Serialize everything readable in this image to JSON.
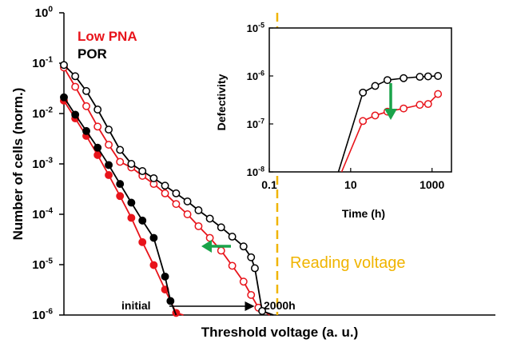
{
  "chart_data": [
    {
      "id": "main",
      "type": "line",
      "xlabel": "Threshold voltage (a. u.)",
      "ylabel": "Number of cells (norm.)",
      "x_tick_labels": [],
      "y_scale": "log",
      "ylim": [
        1e-06,
        1
      ],
      "y_ticks": [
        {
          "v": 1,
          "base": "10",
          "exp": "0"
        },
        {
          "v": 0.1,
          "base": "10",
          "exp": "-1"
        },
        {
          "v": 0.01,
          "base": "10",
          "exp": "-2"
        },
        {
          "v": 0.001,
          "base": "10",
          "exp": "-3"
        },
        {
          "v": 0.0001,
          "base": "10",
          "exp": "-4"
        },
        {
          "v": 1e-05,
          "base": "10",
          "exp": "-5"
        },
        {
          "v": 1e-06,
          "base": "10",
          "exp": "-6"
        }
      ],
      "xlim": [
        0,
        100
      ],
      "legend": {
        "placement": "top-left",
        "entries": [
          {
            "name": "Low PNA",
            "color": "#e8141b"
          },
          {
            "name": "POR",
            "color": "#000000"
          }
        ]
      },
      "series": [
        {
          "name": "Low PNA initial",
          "color": "#e8141b",
          "marker": "filled",
          "x": [
            0,
            4.8,
            9.5,
            14.3,
            19.0,
            23.8,
            28.6,
            33.3,
            38.1,
            42.9,
            47.6,
            50.7
          ],
          "y": [
            0.018,
            0.008,
            0.0036,
            0.0015,
            0.0006,
            0.00023,
            8.5e-05,
            2.8e-05,
            9.8e-06,
            3.2e-06,
            1.1e-06,
            1e-07
          ]
        },
        {
          "name": "POR initial",
          "color": "#000000",
          "marker": "filled",
          "x": [
            0,
            4.8,
            9.5,
            14.3,
            19.0,
            23.8,
            28.6,
            33.3,
            38.1,
            42.9,
            45.2,
            47.6
          ],
          "y": [
            0.021,
            0.0095,
            0.0045,
            0.0021,
            0.00095,
            0.0004,
            0.00017,
            7.5e-05,
            3.4e-05,
            5.8e-06,
            1.9e-06,
            1e-07
          ]
        },
        {
          "name": "Low PNA 2000h",
          "color": "#e8141b",
          "marker": "open",
          "x": [
            0,
            4.8,
            9.5,
            14.3,
            19.0,
            23.8,
            28.6,
            33.3,
            38.1,
            42.9,
            47.6,
            52.4,
            57.1,
            61.9,
            66.7,
            71.4,
            76.2,
            79.4,
            82.5,
            87.3
          ],
          "y": [
            0.082,
            0.034,
            0.014,
            0.0055,
            0.0024,
            0.0011,
            0.00085,
            0.00058,
            0.0004,
            0.00026,
            0.00016,
            0.0001,
            5.8e-05,
            3.4e-05,
            1.9e-05,
            9.5e-06,
            4.6e-06,
            2.5e-06,
            1.4e-06,
            1e-07
          ]
        },
        {
          "name": "POR 2000h",
          "color": "#000000",
          "marker": "open",
          "x": [
            0,
            4.8,
            9.5,
            14.3,
            19.0,
            23.8,
            28.6,
            33.3,
            38.1,
            42.9,
            47.6,
            52.4,
            57.1,
            61.9,
            66.7,
            71.4,
            76.2,
            79.4,
            81.0,
            84.1,
            88.9
          ],
          "y": [
            0.092,
            0.055,
            0.028,
            0.012,
            0.0048,
            0.0019,
            0.001,
            0.00072,
            0.00052,
            0.00037,
            0.00026,
            0.00018,
            0.00012,
            8.2e-05,
            5.5e-05,
            3.6e-05,
            2.3e-05,
            1.4e-05,
            8.5e-06,
            1.2e-06,
            1e-07
          ]
        }
      ],
      "annotations": [
        {
          "text": "initial",
          "type": "label"
        },
        {
          "text": "2000h",
          "type": "label"
        },
        {
          "text": "Reading voltage",
          "type": "vertical-line",
          "color": "#f0b400",
          "x": 90.5
        }
      ]
    },
    {
      "id": "inset",
      "type": "line",
      "xlabel": "Time (h)",
      "ylabel": "Defectivity",
      "x_scale": "log",
      "y_scale": "log",
      "xlim": [
        0.1,
        3000
      ],
      "ylim": [
        1e-08,
        1e-05
      ],
      "x_ticks": [
        {
          "v": 0.1,
          "label": "0.1"
        },
        {
          "v": 10,
          "label": "10"
        },
        {
          "v": 1000,
          "label": "1000"
        }
      ],
      "y_ticks": [
        {
          "v": 1e-05,
          "base": "10",
          "exp": "-5"
        },
        {
          "v": 1e-06,
          "base": "10",
          "exp": "-6"
        },
        {
          "v": 1e-07,
          "base": "10",
          "exp": "-7"
        },
        {
          "v": 1e-08,
          "base": "10",
          "exp": "-8"
        }
      ],
      "series": [
        {
          "name": "POR",
          "color": "#000000",
          "line_x": [
            5,
            20
          ],
          "line_y": [
            1e-08,
            4.5e-07
          ],
          "x": [
            20,
            40,
            80,
            200,
            500,
            800,
            1400
          ],
          "y": [
            4.5e-07,
            6.2e-07,
            8.2e-07,
            9e-07,
            9.6e-07,
            9.8e-07,
            1e-06
          ]
        },
        {
          "name": "Low PNA",
          "color": "#e8141b",
          "line_x": [
            6,
            20
          ],
          "line_y": [
            1e-08,
            1.15e-07
          ],
          "x": [
            20,
            40,
            80,
            200,
            500,
            800,
            1400
          ],
          "y": [
            1.15e-07,
            1.5e-07,
            1.8e-07,
            2.1e-07,
            2.5e-07,
            2.6e-07,
            4.2e-07
          ]
        }
      ]
    }
  ]
}
